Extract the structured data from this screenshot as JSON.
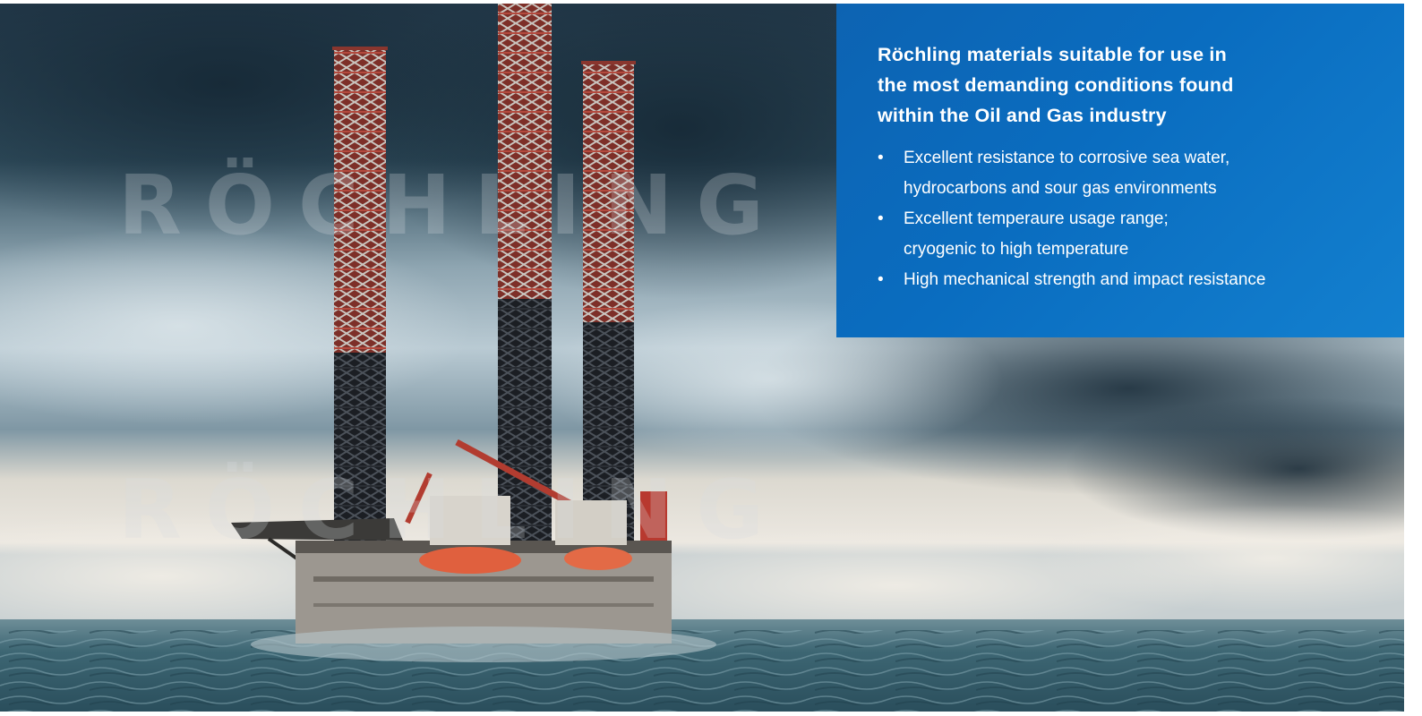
{
  "panel": {
    "heading_lines": [
      "Röchling materials suitable for use in",
      "the most demanding conditions found",
      "within the Oil and Gas industry"
    ],
    "bullet_symbol": "•",
    "items": [
      {
        "lines": [
          "Excellent resistance to corrosive sea water,",
          "hydrocarbons and sour gas environments"
        ]
      },
      {
        "lines": [
          "Excellent temperaure usage range;",
          "cryogenic to high temperature"
        ]
      },
      {
        "lines": [
          "High mechanical strength and impact resistance"
        ]
      }
    ],
    "background_color": "#0a6dc0"
  },
  "watermark": {
    "text_top": "RÖCHLING",
    "text_bottom": "RÖCHLING"
  },
  "photo": {
    "subject": "jack-up-oil-rig-in-stormy-sea",
    "colors": {
      "sky_dark": "#1e3340",
      "sky_light": "#c9d6dc",
      "horizon_haze": "#e9e6df",
      "sea": "#35606e",
      "tower_red": "#9a3a30",
      "tower_dark": "#1a1d21",
      "lifeboat": "#e0603e"
    }
  }
}
